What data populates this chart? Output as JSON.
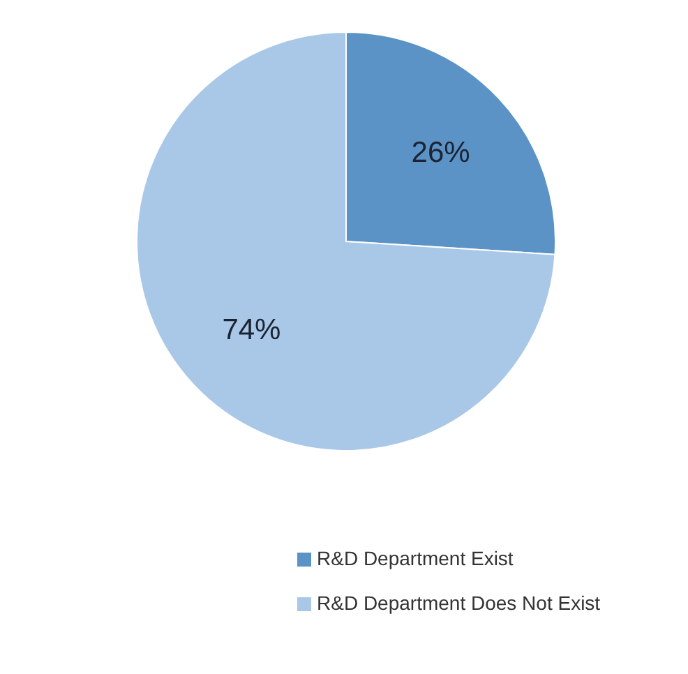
{
  "chart_data": {
    "type": "pie",
    "categories": [
      "R&D Department Exist",
      "R&D Department Does Not Exist"
    ],
    "values": [
      26,
      74
    ],
    "colors": [
      "#5b93c7",
      "#a9c8e8"
    ],
    "value_labels": [
      "26%",
      "74%"
    ],
    "legend": "bottom"
  }
}
